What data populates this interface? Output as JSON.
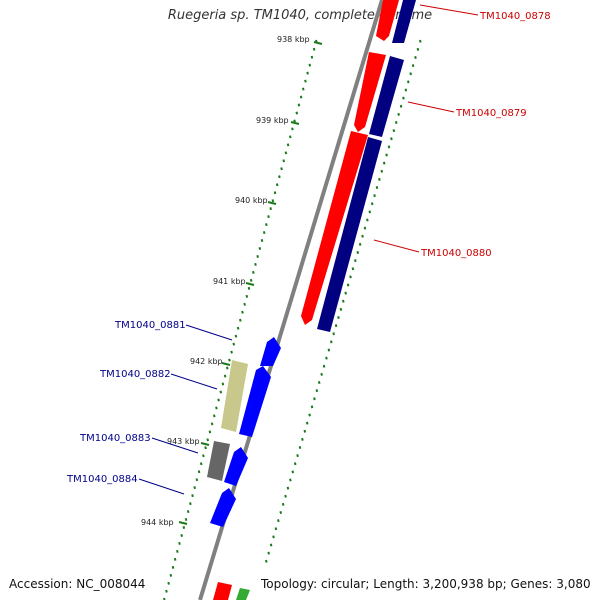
{
  "title": "Ruegeria sp. TM1040, complete genome",
  "footer": {
    "accession": "Accession: NC_008044",
    "stats": "Topology: circular; Length: 3,200,938 bp; Genes: 3,080"
  },
  "colors": {
    "forward_strand": "#ff0000",
    "forward_strand_dark": "#000080",
    "reverse_strand": "#0000ff",
    "forward_label": "#cc0000",
    "reverse_label": "#00008b",
    "ticks": "#1a7a1a",
    "backbone": "#808080",
    "gene_khaki": "#c8c88c",
    "gene_gray": "#666666",
    "gene_green": "#33aa33"
  },
  "kbp_ticks": [
    "938 kbp",
    "939 kbp",
    "940 kbp",
    "941 kbp",
    "942 kbp",
    "943 kbp",
    "944 kbp"
  ],
  "gene_labels": {
    "forward": [
      "TM1040_0878",
      "TM1040_0879",
      "TM1040_0880"
    ],
    "reverse": [
      "TM1040_0881",
      "TM1040_0882",
      "TM1040_0883",
      "TM1040_0884"
    ]
  }
}
